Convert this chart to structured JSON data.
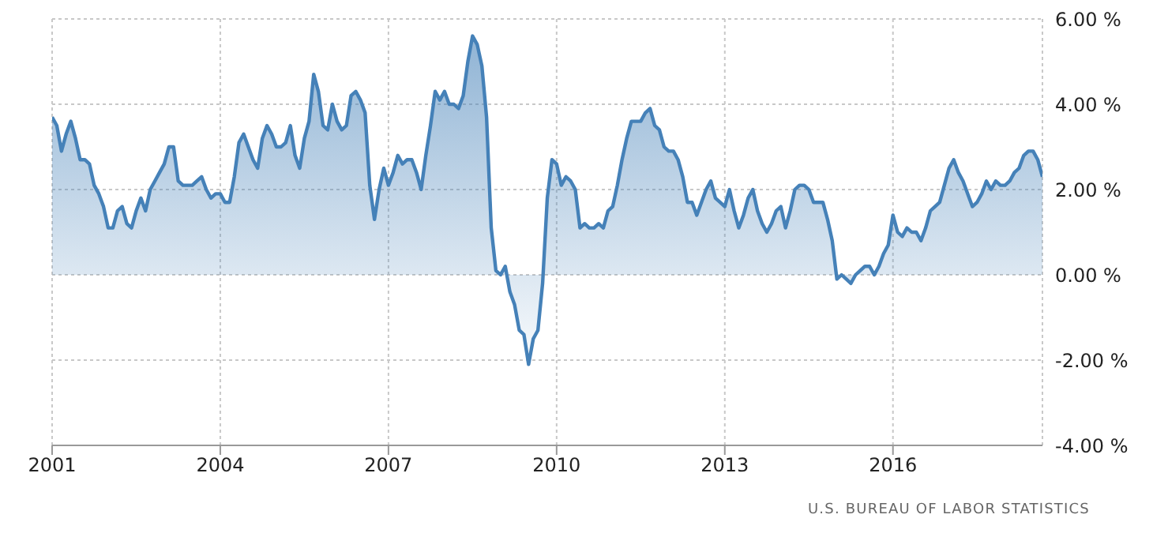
{
  "chart_data": {
    "type": "area",
    "annotations": [
      "U.S. BUREAU OF LABOR STATISTICS"
    ],
    "grid": true,
    "xlim": [
      "2001-01",
      "2018-09"
    ],
    "xticks": [
      {
        "value": "2001-01",
        "label": "2001"
      },
      {
        "value": "2004-01",
        "label": "2004"
      },
      {
        "value": "2007-01",
        "label": "2007"
      },
      {
        "value": "2010-01",
        "label": "2010"
      },
      {
        "value": "2013-01",
        "label": "2013"
      },
      {
        "value": "2016-01",
        "label": "2016"
      }
    ],
    "ylim": [
      -4,
      6
    ],
    "yticks": [
      {
        "value": -4,
        "label": "-4.00 %"
      },
      {
        "value": -2,
        "label": "-2.00 %"
      },
      {
        "value": 0,
        "label": "0.00 %"
      },
      {
        "value": 2,
        "label": "2.00 %"
      },
      {
        "value": 4,
        "label": "4.00 %"
      },
      {
        "value": 6,
        "label": "6.00 %"
      }
    ],
    "x": [
      "2001-01",
      "2001-02",
      "2001-03",
      "2001-04",
      "2001-05",
      "2001-06",
      "2001-07",
      "2001-08",
      "2001-09",
      "2001-10",
      "2001-11",
      "2001-12",
      "2002-01",
      "2002-02",
      "2002-03",
      "2002-04",
      "2002-05",
      "2002-06",
      "2002-07",
      "2002-08",
      "2002-09",
      "2002-10",
      "2002-11",
      "2002-12",
      "2003-01",
      "2003-02",
      "2003-03",
      "2003-04",
      "2003-05",
      "2003-06",
      "2003-07",
      "2003-08",
      "2003-09",
      "2003-10",
      "2003-11",
      "2003-12",
      "2004-01",
      "2004-02",
      "2004-03",
      "2004-04",
      "2004-05",
      "2004-06",
      "2004-07",
      "2004-08",
      "2004-09",
      "2004-10",
      "2004-11",
      "2004-12",
      "2005-01",
      "2005-02",
      "2005-03",
      "2005-04",
      "2005-05",
      "2005-06",
      "2005-07",
      "2005-08",
      "2005-09",
      "2005-10",
      "2005-11",
      "2005-12",
      "2006-01",
      "2006-02",
      "2006-03",
      "2006-04",
      "2006-05",
      "2006-06",
      "2006-07",
      "2006-08",
      "2006-09",
      "2006-10",
      "2006-11",
      "2006-12",
      "2007-01",
      "2007-02",
      "2007-03",
      "2007-04",
      "2007-05",
      "2007-06",
      "2007-07",
      "2007-08",
      "2007-09",
      "2007-10",
      "2007-11",
      "2007-12",
      "2008-01",
      "2008-02",
      "2008-03",
      "2008-04",
      "2008-05",
      "2008-06",
      "2008-07",
      "2008-08",
      "2008-09",
      "2008-10",
      "2008-11",
      "2008-12",
      "2009-01",
      "2009-02",
      "2009-03",
      "2009-04",
      "2009-05",
      "2009-06",
      "2009-07",
      "2009-08",
      "2009-09",
      "2009-10",
      "2009-11",
      "2009-12",
      "2010-01",
      "2010-02",
      "2010-03",
      "2010-04",
      "2010-05",
      "2010-06",
      "2010-07",
      "2010-08",
      "2010-09",
      "2010-10",
      "2010-11",
      "2010-12",
      "2011-01",
      "2011-02",
      "2011-03",
      "2011-04",
      "2011-05",
      "2011-06",
      "2011-07",
      "2011-08",
      "2011-09",
      "2011-10",
      "2011-11",
      "2011-12",
      "2012-01",
      "2012-02",
      "2012-03",
      "2012-04",
      "2012-05",
      "2012-06",
      "2012-07",
      "2012-08",
      "2012-09",
      "2012-10",
      "2012-11",
      "2012-12",
      "2013-01",
      "2013-02",
      "2013-03",
      "2013-04",
      "2013-05",
      "2013-06",
      "2013-07",
      "2013-08",
      "2013-09",
      "2013-10",
      "2013-11",
      "2013-12",
      "2014-01",
      "2014-02",
      "2014-03",
      "2014-04",
      "2014-05",
      "2014-06",
      "2014-07",
      "2014-08",
      "2014-09",
      "2014-10",
      "2014-11",
      "2014-12",
      "2015-01",
      "2015-02",
      "2015-03",
      "2015-04",
      "2015-05",
      "2015-06",
      "2015-07",
      "2015-08",
      "2015-09",
      "2015-10",
      "2015-11",
      "2015-12",
      "2016-01",
      "2016-02",
      "2016-03",
      "2016-04",
      "2016-05",
      "2016-06",
      "2016-07",
      "2016-08",
      "2016-09",
      "2016-10",
      "2016-11",
      "2016-12",
      "2017-01",
      "2017-02",
      "2017-03",
      "2017-04",
      "2017-05",
      "2017-06",
      "2017-07",
      "2017-08",
      "2017-09",
      "2017-10",
      "2017-11",
      "2017-12",
      "2018-01",
      "2018-02",
      "2018-03",
      "2018-04",
      "2018-05",
      "2018-06",
      "2018-07",
      "2018-08",
      "2018-09"
    ],
    "series": [
      {
        "color": "#4581b8",
        "values": [
          3.7,
          3.5,
          2.9,
          3.3,
          3.6,
          3.2,
          2.7,
          2.7,
          2.6,
          2.1,
          1.9,
          1.6,
          1.1,
          1.1,
          1.5,
          1.6,
          1.2,
          1.1,
          1.5,
          1.8,
          1.5,
          2.0,
          2.2,
          2.4,
          2.6,
          3.0,
          3.0,
          2.2,
          2.1,
          2.1,
          2.1,
          2.2,
          2.3,
          2.0,
          1.8,
          1.9,
          1.9,
          1.7,
          1.7,
          2.3,
          3.1,
          3.3,
          3.0,
          2.7,
          2.5,
          3.2,
          3.5,
          3.3,
          3.0,
          3.0,
          3.1,
          3.5,
          2.8,
          2.5,
          3.2,
          3.6,
          4.7,
          4.3,
          3.5,
          3.4,
          4.0,
          3.6,
          3.4,
          3.5,
          4.2,
          4.3,
          4.1,
          3.8,
          2.1,
          1.3,
          2.0,
          2.5,
          2.1,
          2.4,
          2.8,
          2.6,
          2.7,
          2.7,
          2.4,
          2.0,
          2.8,
          3.5,
          4.3,
          4.1,
          4.3,
          4.0,
          4.0,
          3.9,
          4.2,
          5.0,
          5.6,
          5.4,
          4.9,
          3.7,
          1.1,
          0.1,
          0.0,
          0.2,
          -0.4,
          -0.7,
          -1.3,
          -1.4,
          -2.1,
          -1.5,
          -1.3,
          -0.2,
          1.8,
          2.7,
          2.6,
          2.1,
          2.3,
          2.2,
          2.0,
          1.1,
          1.2,
          1.1,
          1.1,
          1.2,
          1.1,
          1.5,
          1.6,
          2.1,
          2.7,
          3.2,
          3.6,
          3.6,
          3.6,
          3.8,
          3.9,
          3.5,
          3.4,
          3.0,
          2.9,
          2.9,
          2.7,
          2.3,
          1.7,
          1.7,
          1.4,
          1.7,
          2.0,
          2.2,
          1.8,
          1.7,
          1.6,
          2.0,
          1.5,
          1.1,
          1.4,
          1.8,
          2.0,
          1.5,
          1.2,
          1.0,
          1.2,
          1.5,
          1.6,
          1.1,
          1.5,
          2.0,
          2.1,
          2.1,
          2.0,
          1.7,
          1.7,
          1.7,
          1.3,
          0.8,
          -0.1,
          0.0,
          -0.1,
          -0.2,
          0.0,
          0.1,
          0.2,
          0.2,
          0.0,
          0.2,
          0.5,
          0.7,
          1.4,
          1.0,
          0.9,
          1.1,
          1.0,
          1.0,
          0.8,
          1.1,
          1.5,
          1.6,
          1.7,
          2.1,
          2.5,
          2.7,
          2.4,
          2.2,
          1.9,
          1.6,
          1.7,
          1.9,
          2.2,
          2.0,
          2.2,
          2.1,
          2.1,
          2.2,
          2.4,
          2.5,
          2.8,
          2.9,
          2.9,
          2.7,
          2.3
        ]
      }
    ]
  }
}
